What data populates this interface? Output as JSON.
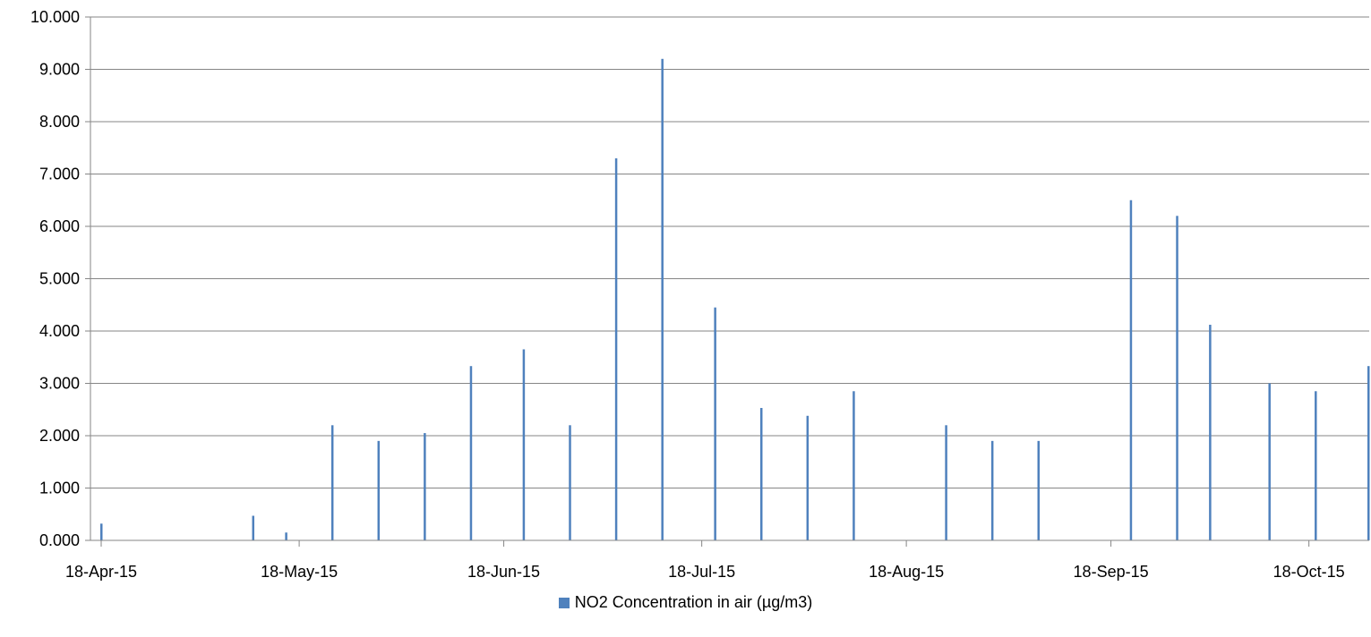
{
  "chart_data": {
    "type": "bar",
    "series": [
      {
        "name": "NO2 Concentration in air (µg/m3)",
        "color": "#4F81BD",
        "points": [
          {
            "x": "2015-04-18",
            "y": 0.32
          },
          {
            "x": "2015-05-11",
            "y": 0.47
          },
          {
            "x": "2015-05-16",
            "y": 0.15
          },
          {
            "x": "2015-05-23",
            "y": 2.2
          },
          {
            "x": "2015-05-30",
            "y": 1.9
          },
          {
            "x": "2015-06-06",
            "y": 2.05
          },
          {
            "x": "2015-06-13",
            "y": 3.33
          },
          {
            "x": "2015-06-21",
            "y": 3.65
          },
          {
            "x": "2015-06-28",
            "y": 2.2
          },
          {
            "x": "2015-07-05",
            "y": 7.3
          },
          {
            "x": "2015-07-12",
            "y": 9.2
          },
          {
            "x": "2015-07-20",
            "y": 4.45
          },
          {
            "x": "2015-07-27",
            "y": 2.53
          },
          {
            "x": "2015-08-03",
            "y": 2.38
          },
          {
            "x": "2015-08-10",
            "y": 2.85
          },
          {
            "x": "2015-08-24",
            "y": 2.2
          },
          {
            "x": "2015-08-31",
            "y": 1.9
          },
          {
            "x": "2015-09-07",
            "y": 1.9
          },
          {
            "x": "2015-09-21",
            "y": 6.5
          },
          {
            "x": "2015-09-28",
            "y": 6.2
          },
          {
            "x": "2015-10-03",
            "y": 4.12
          },
          {
            "x": "2015-10-12",
            "y": 3.0
          },
          {
            "x": "2015-10-19",
            "y": 2.85
          },
          {
            "x": "2015-10-27",
            "y": 3.33
          }
        ]
      }
    ],
    "x_axis": {
      "ticks": [
        "2015-04-18",
        "2015-05-18",
        "2015-06-18",
        "2015-07-18",
        "2015-08-18",
        "2015-09-18",
        "2015-10-18"
      ],
      "tick_labels": [
        "18-Apr-15",
        "18-May-15",
        "18-Jun-15",
        "18-Jul-15",
        "18-Aug-15",
        "18-Sep-15",
        "18-Oct-15"
      ],
      "range": [
        "2015-04-18",
        "2015-10-27"
      ]
    },
    "y_axis": {
      "range": [
        0,
        10
      ],
      "step": 1,
      "tick_labels": [
        "0.000",
        "1.000",
        "2.000",
        "3.000",
        "4.000",
        "5.000",
        "6.000",
        "7.000",
        "8.000",
        "9.000",
        "10.000"
      ]
    },
    "grid": "horizontal",
    "legend_position": "bottom",
    "title": "",
    "xlabel": "",
    "ylabel": ""
  }
}
